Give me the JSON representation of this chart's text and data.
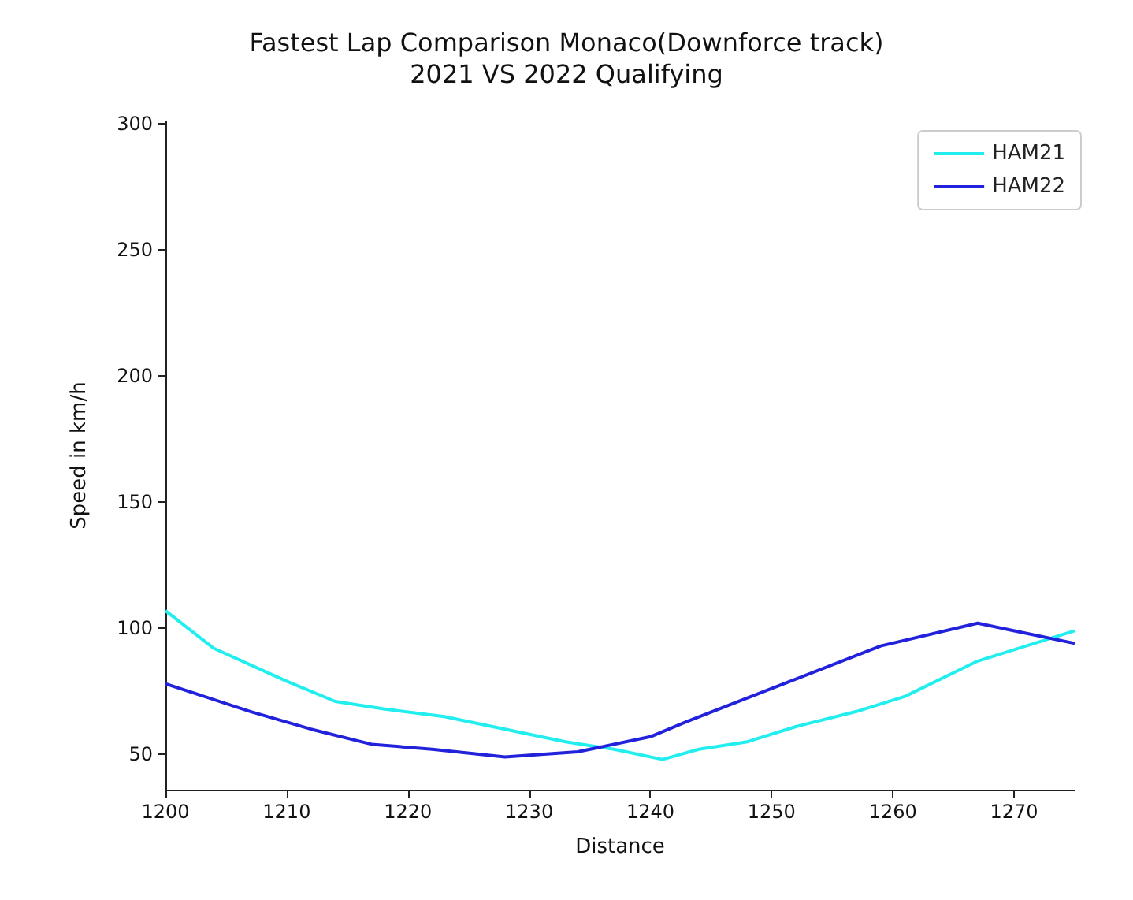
{
  "chart_data": {
    "type": "line",
    "title": "Fastest Lap Comparison Monaco(Downforce track)\n2021 VS 2022 Qualifying",
    "xlabel": "Distance",
    "ylabel": "Speed in km/h",
    "xlim": [
      1200,
      1275
    ],
    "xticks": [
      1200,
      1210,
      1220,
      1230,
      1240,
      1250,
      1260,
      1270
    ],
    "ylim": [
      36,
      301
    ],
    "yticks": [
      50,
      100,
      150,
      200,
      250,
      300
    ],
    "series": [
      {
        "name": "HAM21",
        "color": "#22eef0",
        "x": [
          1200,
          1204,
          1210,
          1214,
          1218,
          1223,
          1228,
          1233,
          1237,
          1241,
          1244,
          1248,
          1252,
          1257,
          1261,
          1267,
          1275
        ],
        "values": [
          107,
          92,
          79,
          71,
          68,
          65,
          60,
          55,
          52,
          48,
          52,
          55,
          61,
          67,
          73,
          87,
          99
        ]
      },
      {
        "name": "HAM22",
        "color": "#2222dd",
        "x": [
          1200,
          1207,
          1212,
          1217,
          1222,
          1228,
          1234,
          1240,
          1243,
          1251,
          1259,
          1267,
          1275
        ],
        "values": [
          78,
          67,
          60,
          54,
          52,
          49,
          51,
          57,
          63,
          78,
          93,
          102,
          94
        ]
      }
    ],
    "legend": "top right",
    "grid": false,
    "marker": "none",
    "line_style": "solid"
  }
}
